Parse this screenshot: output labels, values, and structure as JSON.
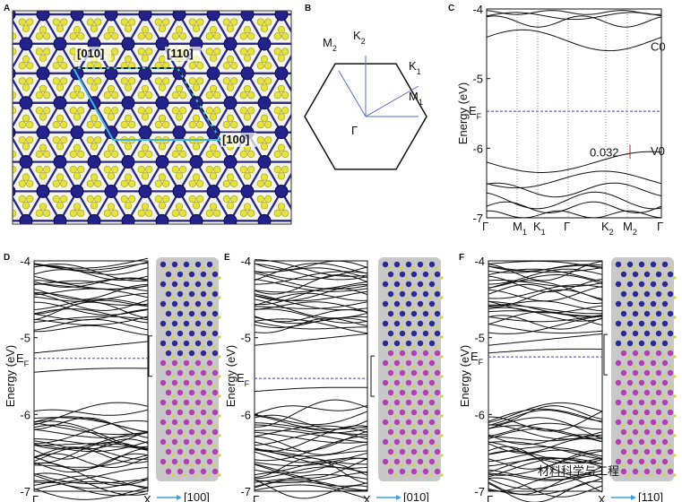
{
  "panel_a": {
    "label": "A",
    "directions": [
      "[010]",
      "[110]",
      "[100]"
    ]
  },
  "panel_b": {
    "label": "B",
    "points": [
      {
        "main": "K",
        "sub": "2"
      },
      {
        "main": "M",
        "sub": "2"
      },
      {
        "main": "K",
        "sub": "1"
      },
      {
        "main": "Γ"
      },
      {
        "main": "M",
        "sub": "1"
      }
    ]
  },
  "panel_c": {
    "label": "C",
    "y_label": "Energy (eV)",
    "ylim": [
      -4,
      -7
    ],
    "yticks": [
      -4,
      -5,
      -6,
      -7
    ],
    "fermi": {
      "main": "E",
      "sub": "F"
    },
    "fermi_level": -5.47,
    "kpoints": [
      {
        "main": "Γ"
      },
      {
        "main": "M",
        "sub": "1"
      },
      {
        "main": "K",
        "sub": "1"
      },
      {
        "main": "Γ"
      },
      {
        "main": "K",
        "sub": "2"
      },
      {
        "main": "M",
        "sub": "2"
      },
      {
        "main": "Γ"
      }
    ],
    "states": [
      "C0",
      "V0"
    ],
    "gap_annotation": "0.032"
  },
  "slab_panels": [
    {
      "label": "D",
      "y_label": "Energy (eV)",
      "ylim": [
        -4,
        -7
      ],
      "yticks": [
        -4,
        -5,
        -6,
        -7
      ],
      "fermi": {
        "main": "E",
        "sub": "F"
      },
      "fermi_level": -5.27,
      "kpoints": [
        {
          "main": "Γ"
        },
        {
          "main": "X"
        }
      ],
      "direction": "[100]"
    },
    {
      "label": "E",
      "y_label": "Energy (eV)",
      "ylim": [
        -4,
        -7
      ],
      "yticks": [
        -4,
        -5,
        -6,
        -7
      ],
      "fermi": {
        "main": "E",
        "sub": "F"
      },
      "fermi_level": -5.53,
      "kpoints": [
        {
          "main": "Γ"
        },
        {
          "main": "X"
        }
      ],
      "direction": "[010]"
    },
    {
      "label": "F",
      "y_label": "Energy (eV)",
      "ylim": [
        -4,
        -7
      ],
      "yticks": [
        -4,
        -5,
        -6,
        -7
      ],
      "fermi": {
        "main": "E",
        "sub": "F"
      },
      "fermi_level": -5.25,
      "kpoints": [
        {
          "main": "Γ"
        },
        {
          "main": "X"
        }
      ],
      "direction": "[110]"
    }
  ],
  "watermark": "材料科学与工程"
}
